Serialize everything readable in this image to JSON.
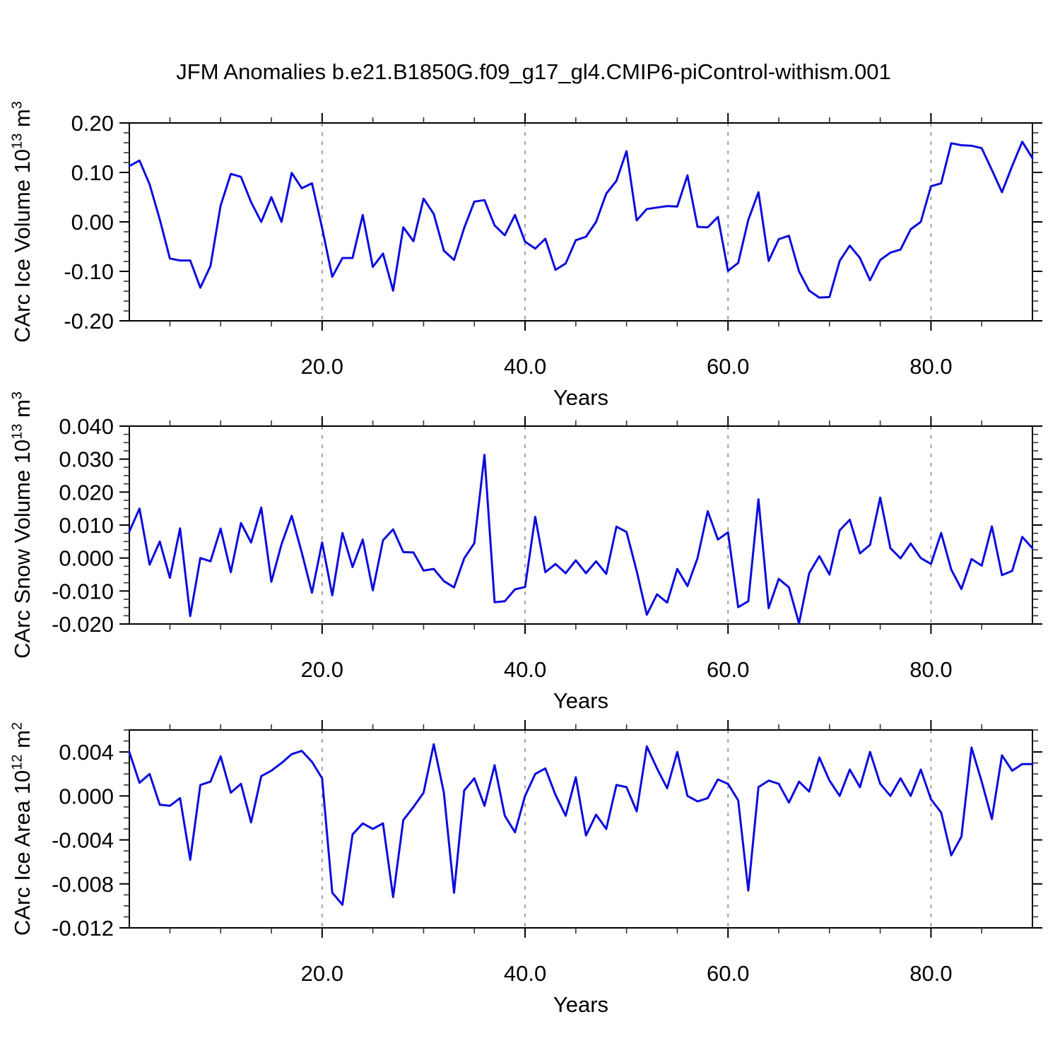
{
  "title": "JFM Anomalies b.e21.B1850G.f09_g17_gl4.CMIP6-piControl-withism.001",
  "line_color": "#0b0bdf",
  "grid_color": "#8c8c8c",
  "chart_data": [
    {
      "type": "line",
      "name": "ice-volume",
      "ylabel_parts": {
        "base": "CArc Ice Volume 10",
        "sup1": "13",
        "mid": " m",
        "sup2": "3"
      },
      "ylim": [
        -0.2,
        0.2
      ],
      "yticks": [
        0.2,
        0.1,
        0.0,
        -0.1,
        -0.2
      ],
      "ytick_labels": [
        "0.20",
        "0.10",
        "0.00",
        "-0.10",
        "-0.20"
      ],
      "y_minor_step": 0.02,
      "xlim": [
        1,
        90
      ],
      "xticks": [
        20,
        40,
        60,
        80
      ],
      "xtick_labels": [
        "20.0",
        "40.0",
        "60.0",
        "80.0"
      ],
      "x_minor_step": 5,
      "xlabel": "Years",
      "grid_dashed_at": [
        20,
        40,
        60,
        80
      ],
      "values": [
        0.113,
        0.124,
        0.076,
        0.005,
        -0.074,
        -0.078,
        -0.078,
        -0.133,
        -0.089,
        0.033,
        0.097,
        0.091,
        0.04,
        0.0,
        0.05,
        0.0,
        0.099,
        0.068,
        0.078,
        -0.012,
        -0.111,
        -0.073,
        -0.073,
        0.014,
        -0.091,
        -0.064,
        -0.139,
        -0.011,
        -0.039,
        0.047,
        0.016,
        -0.058,
        -0.077,
        -0.012,
        0.041,
        0.044,
        -0.007,
        -0.027,
        0.014,
        -0.04,
        -0.054,
        -0.034,
        -0.097,
        -0.084,
        -0.037,
        -0.03,
        0.0,
        0.057,
        0.083,
        0.143,
        0.003,
        0.026,
        0.029,
        0.032,
        0.031,
        0.094,
        -0.01,
        -0.011,
        0.01,
        -0.099,
        -0.083,
        0.004,
        0.06,
        -0.079,
        -0.035,
        -0.028,
        -0.1,
        -0.139,
        -0.153,
        -0.152,
        -0.079,
        -0.048,
        -0.073,
        -0.118,
        -0.077,
        -0.062,
        -0.056,
        -0.015,
        0.0,
        0.072,
        0.078,
        0.159,
        0.155,
        0.154,
        0.149,
        0.105,
        0.06,
        0.113,
        0.162,
        0.129
      ]
    },
    {
      "type": "line",
      "name": "snow-volume",
      "ylabel_parts": {
        "base": "CArc Snow Volume 10",
        "sup1": "13",
        "mid": " m",
        "sup2": "3"
      },
      "ylim": [
        -0.02,
        0.04
      ],
      "yticks": [
        0.04,
        0.03,
        0.02,
        0.01,
        0.0,
        -0.01,
        -0.02
      ],
      "ytick_labels": [
        "0.040",
        "0.030",
        "0.020",
        "0.010",
        "0.000",
        "-0.010",
        "-0.020"
      ],
      "y_minor_step": 0.0025,
      "xlim": [
        1,
        90
      ],
      "xticks": [
        20,
        40,
        60,
        80
      ],
      "xtick_labels": [
        "20.0",
        "40.0",
        "60.0",
        "80.0"
      ],
      "x_minor_step": 5,
      "xlabel": "Years",
      "grid_dashed_at": [
        20,
        40,
        60,
        80
      ],
      "values": [
        0.008,
        0.015,
        -0.002,
        0.005,
        -0.006,
        0.009,
        -0.0176,
        0.0,
        -0.001,
        0.0089,
        -0.0043,
        0.0106,
        0.0047,
        0.0153,
        -0.0072,
        0.0042,
        0.0128,
        0.0016,
        -0.0105,
        0.0047,
        -0.0113,
        0.0076,
        -0.0027,
        0.0056,
        -0.0098,
        0.0054,
        0.0087,
        0.0018,
        0.0017,
        -0.0038,
        -0.0033,
        -0.007,
        -0.0089,
        -0.0001,
        0.0045,
        0.0313,
        -0.0134,
        -0.0131,
        -0.0095,
        -0.0088,
        0.0125,
        -0.0043,
        -0.0018,
        -0.0046,
        -0.0007,
        -0.0046,
        -0.001,
        -0.0048,
        0.0095,
        0.0079,
        -0.004,
        -0.0172,
        -0.011,
        -0.0135,
        -0.0033,
        -0.0085,
        0.0,
        0.0142,
        0.0056,
        0.0078,
        -0.0149,
        -0.0131,
        0.0178,
        -0.0152,
        -0.0063,
        -0.0089,
        -0.0198,
        -0.0046,
        0.0006,
        -0.005,
        0.0084,
        0.0116,
        0.0014,
        0.004,
        0.0183,
        0.003,
        -0.0001,
        0.0044,
        0.0,
        -0.0018,
        0.0076,
        -0.0035,
        -0.0094,
        -0.0003,
        -0.0023,
        0.0096,
        -0.0052,
        -0.0039,
        0.0064,
        0.003
      ]
    },
    {
      "type": "line",
      "name": "ice-area",
      "ylabel_parts": {
        "base": "CArc Ice Area 10",
        "sup1": "12",
        "mid": " m",
        "sup2": "2"
      },
      "ylim": [
        -0.012,
        0.006
      ],
      "yticks": [
        0.004,
        0.0,
        -0.004,
        -0.008,
        -0.012
      ],
      "ytick_labels": [
        "0.004",
        "0.000",
        "-0.004",
        "-0.008",
        "-0.012"
      ],
      "y_minor_step": 0.001,
      "xlim": [
        1,
        90
      ],
      "xticks": [
        20,
        40,
        60,
        80
      ],
      "xtick_labels": [
        "20.0",
        "40.0",
        "60.0",
        "80.0"
      ],
      "x_minor_step": 5,
      "xlabel": "Years",
      "grid_dashed_at": [
        20,
        40,
        60,
        80
      ],
      "values": [
        0.004,
        0.0012,
        0.002,
        -0.0008,
        -0.0009,
        -0.0002,
        -0.0058,
        0.001,
        0.0013,
        0.0036,
        0.0003,
        0.0011,
        -0.0024,
        0.0018,
        0.0023,
        0.003,
        0.0038,
        0.0041,
        0.0031,
        0.0016,
        -0.0088,
        -0.0099,
        -0.0035,
        -0.0025,
        -0.003,
        -0.0025,
        -0.0092,
        -0.0022,
        -0.001,
        0.0003,
        0.0047,
        0.0003,
        -0.0088,
        0.0005,
        0.0016,
        -0.0009,
        0.0028,
        -0.0018,
        -0.0033,
        0.0,
        0.002,
        0.0025,
        0.0001,
        -0.0018,
        0.0017,
        -0.0036,
        -0.0017,
        -0.003,
        0.001,
        0.0008,
        -0.0014,
        0.0045,
        0.0025,
        0.0007,
        0.004,
        0.0,
        -0.0005,
        -0.0002,
        0.0015,
        0.0011,
        -0.0004,
        -0.0086,
        0.0008,
        0.0014,
        0.0011,
        -0.0006,
        0.0013,
        0.0004,
        0.0035,
        0.0014,
        0.0,
        0.0024,
        0.0008,
        0.004,
        0.0011,
        0.0,
        0.0016,
        0.0,
        0.0024,
        -0.0003,
        -0.0015,
        -0.0054,
        -0.0037,
        0.0044,
        0.0013,
        -0.0021,
        0.0037,
        0.0023,
        0.0029,
        0.0029
      ]
    }
  ]
}
